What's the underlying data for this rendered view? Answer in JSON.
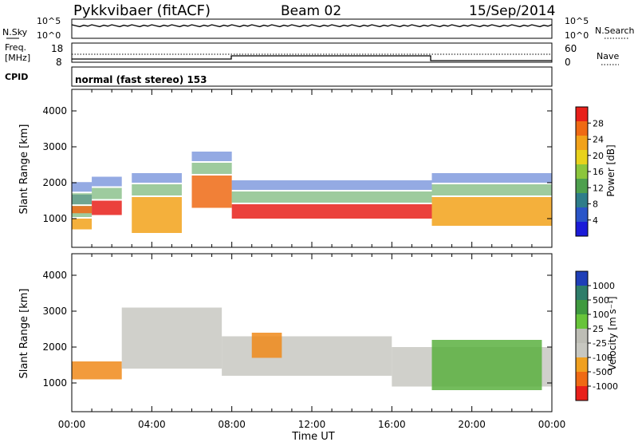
{
  "header": {
    "station": "Pykkvibaer (fitACF)",
    "beam": "Beam 02",
    "date": "15/Sep/2014"
  },
  "noise_panel": {
    "left_label": "N.Sky",
    "left_ticks": [
      "10^5",
      "10^0"
    ],
    "right_ticks": [
      "10^5",
      "10^0"
    ],
    "right_label": "N.Search"
  },
  "freq_panel": {
    "label_line1": "Freq.",
    "label_line2": "[MHz]",
    "left_ticks": [
      "18",
      "8"
    ],
    "right_ticks": [
      "60",
      "0"
    ],
    "right_label": "Nave"
  },
  "cpid_panel": {
    "label": "CPID",
    "text": "normal (fast stereo) 153"
  },
  "chart_data": [
    {
      "type": "heatmap",
      "name": "power",
      "ylabel": "Slant Range [km]",
      "ylim": [
        200,
        4600
      ],
      "y_ticks": [
        1000,
        2000,
        3000,
        4000
      ],
      "x_ticks": [
        0,
        4,
        8,
        12,
        16,
        20,
        24
      ],
      "colorbar_label": "Power [dB]",
      "colorbar_ticks": [
        "4",
        "8",
        "12",
        "16",
        "20",
        "24",
        "28"
      ],
      "colorbar_colors": [
        "#1b1bd8",
        "#2a55c8",
        "#2e7d8a",
        "#4ea04e",
        "#8cc63c",
        "#e8d21c",
        "#f2a21a",
        "#ef6a14",
        "#e8201a"
      ],
      "bands": [
        {
          "t0": 0.0,
          "t1": 1.0,
          "r0": 700,
          "r1": 1000
        },
        {
          "t0": 0.0,
          "t1": 1.0,
          "r0": 1150,
          "r1": 1350
        },
        {
          "t0": 1.0,
          "t1": 2.5,
          "r0": 1100,
          "r1": 1500
        },
        {
          "t0": 3.0,
          "t1": 5.5,
          "r0": 600,
          "r1": 1600
        },
        {
          "t0": 6.0,
          "t1": 8.0,
          "r0": 1300,
          "r1": 2200
        },
        {
          "t0": 8.0,
          "t1": 18.0,
          "r0": 1000,
          "r1": 1400
        },
        {
          "t0": 18.0,
          "t1": 24.0,
          "r0": 800,
          "r1": 1600
        }
      ]
    },
    {
      "type": "heatmap",
      "name": "velocity",
      "ylabel": "Slant Range [km]",
      "ylim": [
        200,
        4600
      ],
      "y_ticks": [
        1000,
        2000,
        3000,
        4000
      ],
      "x_ticks": [
        0,
        4,
        8,
        12,
        16,
        20,
        24
      ],
      "colorbar_label": "Velocity [m s⁻¹]",
      "colorbar_ticks": [
        "1000",
        "500",
        "100",
        "25",
        "-25",
        "-100",
        "-500",
        "-1000"
      ],
      "colorbar_colors": [
        "#1f3fb8",
        "#2e7d6a",
        "#3f9a3f",
        "#68c43a",
        "#bdbdb5",
        "#c7c7c0",
        "#f0a020",
        "#ef6a14",
        "#e8201a"
      ],
      "bands": [
        {
          "t0": 0.0,
          "t1": 2.5,
          "r0": 1100,
          "r1": 1600,
          "v": "-500"
        },
        {
          "t0": 2.5,
          "t1": 7.5,
          "r0": 1400,
          "r1": 3100,
          "v": "0"
        },
        {
          "t0": 7.5,
          "t1": 16.0,
          "r0": 1200,
          "r1": 2300,
          "v": "0"
        },
        {
          "t0": 16.0,
          "t1": 24.0,
          "r0": 900,
          "r1": 2000,
          "v": "0"
        },
        {
          "t0": 9.0,
          "t1": 10.5,
          "r0": 1700,
          "r1": 2400,
          "v": "-500"
        },
        {
          "t0": 18.0,
          "t1": 23.5,
          "r0": 800,
          "r1": 2200,
          "v": "100"
        }
      ]
    }
  ],
  "x_axis": {
    "ticks": [
      "00:00",
      "04:00",
      "08:00",
      "12:00",
      "16:00",
      "20:00",
      "00:00"
    ],
    "label": "Time UT"
  }
}
